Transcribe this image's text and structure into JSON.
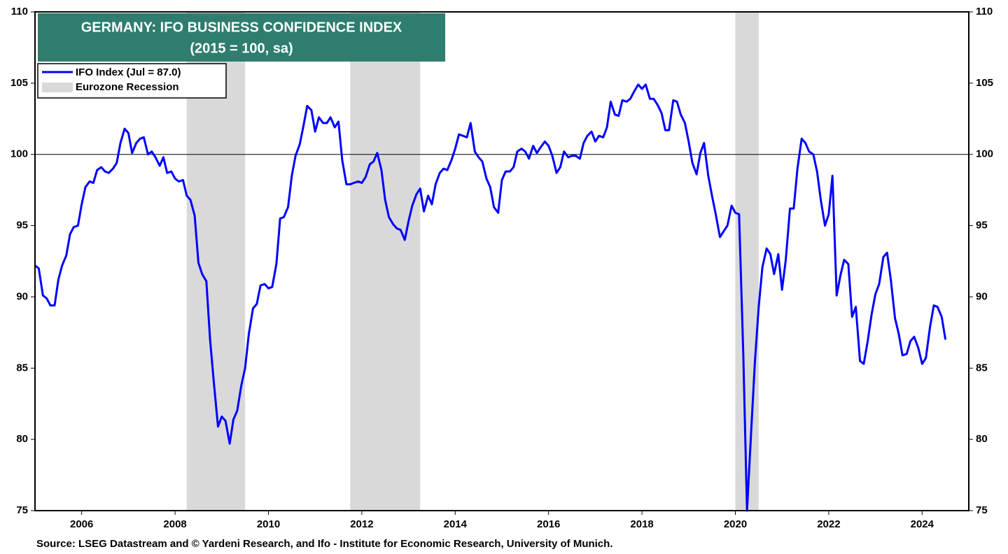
{
  "chart_data": {
    "type": "line",
    "title": "GERMANY: IFO BUSINESS  CONFIDENCE INDEX",
    "subtitle": "(2015 = 100, sa)",
    "source": "Source: LSEG Datastream and © Yardeni Research, and Ifo - Institute for Economic Research, University of Munich.",
    "xlim": [
      2005,
      2025
    ],
    "xticks": [
      2006,
      2008,
      2010,
      2012,
      2014,
      2016,
      2018,
      2020,
      2022,
      2024
    ],
    "ylim": [
      75,
      110
    ],
    "yticks": [
      75,
      80,
      85,
      90,
      95,
      100,
      105,
      110
    ],
    "reference_line": 100,
    "recession_name": "Eurozone Recession",
    "recession_color": "#d9d9d9",
    "recessions": [
      [
        2008.25,
        2009.5
      ],
      [
        2011.75,
        2013.25
      ],
      [
        2020.0,
        2020.5
      ]
    ],
    "series": [
      {
        "name": "IFO Index (Jul = 87.0)",
        "color": "#0000ff",
        "x": [
          2005,
          2005.08,
          2005.17,
          2005.25,
          2005.33,
          2005.42,
          2005.5,
          2005.58,
          2005.67,
          2005.75,
          2005.83,
          2005.92,
          2006,
          2006.08,
          2006.17,
          2006.25,
          2006.33,
          2006.42,
          2006.5,
          2006.58,
          2006.67,
          2006.75,
          2006.83,
          2006.92,
          2007,
          2007.08,
          2007.17,
          2007.25,
          2007.33,
          2007.42,
          2007.5,
          2007.58,
          2007.67,
          2007.75,
          2007.83,
          2007.92,
          2008,
          2008.08,
          2008.17,
          2008.25,
          2008.33,
          2008.42,
          2008.5,
          2008.58,
          2008.67,
          2008.75,
          2008.83,
          2008.92,
          2009,
          2009.08,
          2009.17,
          2009.25,
          2009.33,
          2009.42,
          2009.5,
          2009.58,
          2009.67,
          2009.75,
          2009.83,
          2009.92,
          2010,
          2010.08,
          2010.17,
          2010.25,
          2010.33,
          2010.42,
          2010.5,
          2010.58,
          2010.67,
          2010.75,
          2010.83,
          2010.92,
          2011,
          2011.08,
          2011.17,
          2011.25,
          2011.33,
          2011.42,
          2011.5,
          2011.58,
          2011.67,
          2011.75,
          2011.83,
          2011.92,
          2012,
          2012.08,
          2012.17,
          2012.25,
          2012.33,
          2012.42,
          2012.5,
          2012.58,
          2012.67,
          2012.75,
          2012.83,
          2012.92,
          2013,
          2013.08,
          2013.17,
          2013.25,
          2013.33,
          2013.42,
          2013.5,
          2013.58,
          2013.67,
          2013.75,
          2013.83,
          2013.92,
          2014,
          2014.08,
          2014.17,
          2014.25,
          2014.33,
          2014.42,
          2014.5,
          2014.58,
          2014.67,
          2014.75,
          2014.83,
          2014.92,
          2015,
          2015.08,
          2015.17,
          2015.25,
          2015.33,
          2015.42,
          2015.5,
          2015.58,
          2015.67,
          2015.75,
          2015.83,
          2015.92,
          2016,
          2016.08,
          2016.17,
          2016.25,
          2016.33,
          2016.42,
          2016.5,
          2016.58,
          2016.67,
          2016.75,
          2016.83,
          2016.92,
          2017,
          2017.08,
          2017.17,
          2017.25,
          2017.33,
          2017.42,
          2017.5,
          2017.58,
          2017.67,
          2017.75,
          2017.83,
          2017.92,
          2018,
          2018.08,
          2018.17,
          2018.25,
          2018.33,
          2018.42,
          2018.5,
          2018.58,
          2018.67,
          2018.75,
          2018.83,
          2018.92,
          2019,
          2019.08,
          2019.17,
          2019.25,
          2019.33,
          2019.42,
          2019.5,
          2019.58,
          2019.67,
          2019.75,
          2019.83,
          2019.92,
          2020,
          2020.08,
          2020.17,
          2020.25,
          2020.33,
          2020.42,
          2020.5,
          2020.58,
          2020.67,
          2020.75,
          2020.83,
          2020.92,
          2021,
          2021.08,
          2021.17,
          2021.25,
          2021.33,
          2021.42,
          2021.5,
          2021.58,
          2021.67,
          2021.75,
          2021.83,
          2021.92,
          2022,
          2022.08,
          2022.17,
          2022.25,
          2022.33,
          2022.42,
          2022.5,
          2022.58,
          2022.67,
          2022.75,
          2022.83,
          2022.92,
          2023,
          2023.08,
          2023.17,
          2023.25,
          2023.33,
          2023.42,
          2023.5,
          2023.58,
          2023.67,
          2023.75,
          2023.83,
          2023.92,
          2024,
          2024.08,
          2024.17,
          2024.25,
          2024.33,
          2024.42,
          2024.5
        ],
        "values": [
          92.2,
          92.0,
          90.1,
          89.9,
          89.4,
          89.4,
          91.2,
          92.2,
          92.9,
          94.4,
          94.9,
          95.0,
          96.5,
          97.7,
          98.1,
          98.0,
          98.9,
          99.1,
          98.8,
          98.7,
          99.0,
          99.4,
          100.8,
          101.8,
          101.5,
          100.1,
          100.8,
          101.1,
          101.2,
          100.0,
          100.2,
          99.8,
          99.2,
          99.8,
          98.7,
          98.8,
          98.3,
          98.1,
          98.2,
          97.1,
          96.8,
          95.7,
          92.4,
          91.6,
          91.1,
          87.0,
          84.0,
          80.9,
          81.6,
          81.3,
          79.7,
          81.4,
          82.0,
          83.8,
          85.0,
          87.4,
          89.2,
          89.5,
          90.8,
          90.9,
          90.6,
          90.7,
          92.3,
          95.5,
          95.6,
          96.3,
          98.5,
          99.9,
          100.7,
          102.0,
          103.4,
          103.1,
          101.6,
          102.6,
          102.2,
          102.2,
          102.6,
          101.9,
          102.3,
          99.6,
          97.9,
          97.9,
          98.0,
          98.1,
          98.0,
          98.4,
          99.3,
          99.5,
          100.1,
          98.9,
          96.8,
          95.6,
          95.1,
          94.8,
          94.7,
          94.0,
          95.3,
          96.4,
          97.2,
          97.6,
          96.0,
          97.1,
          96.5,
          97.9,
          98.7,
          99.0,
          98.9,
          99.6,
          100.4,
          101.4,
          101.3,
          101.2,
          102.2,
          100.2,
          99.8,
          99.5,
          98.3,
          97.7,
          96.3,
          95.9,
          98.2,
          98.8,
          98.8,
          99.1,
          100.2,
          100.4,
          100.2,
          99.7,
          100.6,
          100.1,
          100.5,
          100.9,
          100.6,
          99.9,
          98.7,
          99.1,
          100.2,
          99.8,
          99.9,
          99.9,
          99.7,
          100.8,
          101.3,
          101.6,
          100.9,
          101.3,
          101.2,
          101.9,
          103.7,
          102.8,
          102.7,
          103.8,
          103.7,
          103.9,
          104.4,
          104.9,
          104.6,
          104.9,
          103.9,
          103.9,
          103.5,
          102.9,
          101.7,
          101.7,
          103.8,
          103.7,
          102.8,
          102.2,
          100.9,
          99.4,
          98.6,
          100.1,
          100.8,
          98.5,
          97.1,
          95.8,
          94.2,
          94.6,
          95.0,
          96.4,
          95.9,
          95.8,
          86.0,
          75.0,
          80.0,
          85.5,
          89.3,
          92.1,
          93.4,
          93.0,
          91.6,
          93.0,
          90.5,
          92.6,
          96.2,
          96.2,
          99.0,
          101.1,
          100.8,
          100.2,
          100.0,
          98.8,
          96.8,
          95.0,
          95.8,
          98.5,
          90.1,
          91.5,
          92.6,
          92.3,
          88.6,
          89.3,
          85.5,
          85.3,
          86.8,
          88.8,
          90.2,
          90.9,
          92.8,
          93.1,
          91.2,
          88.5,
          87.4,
          85.9,
          86.0,
          86.9,
          87.2,
          86.4,
          85.3,
          85.7,
          87.9,
          89.4,
          89.3,
          88.6,
          87.0
        ]
      }
    ]
  }
}
